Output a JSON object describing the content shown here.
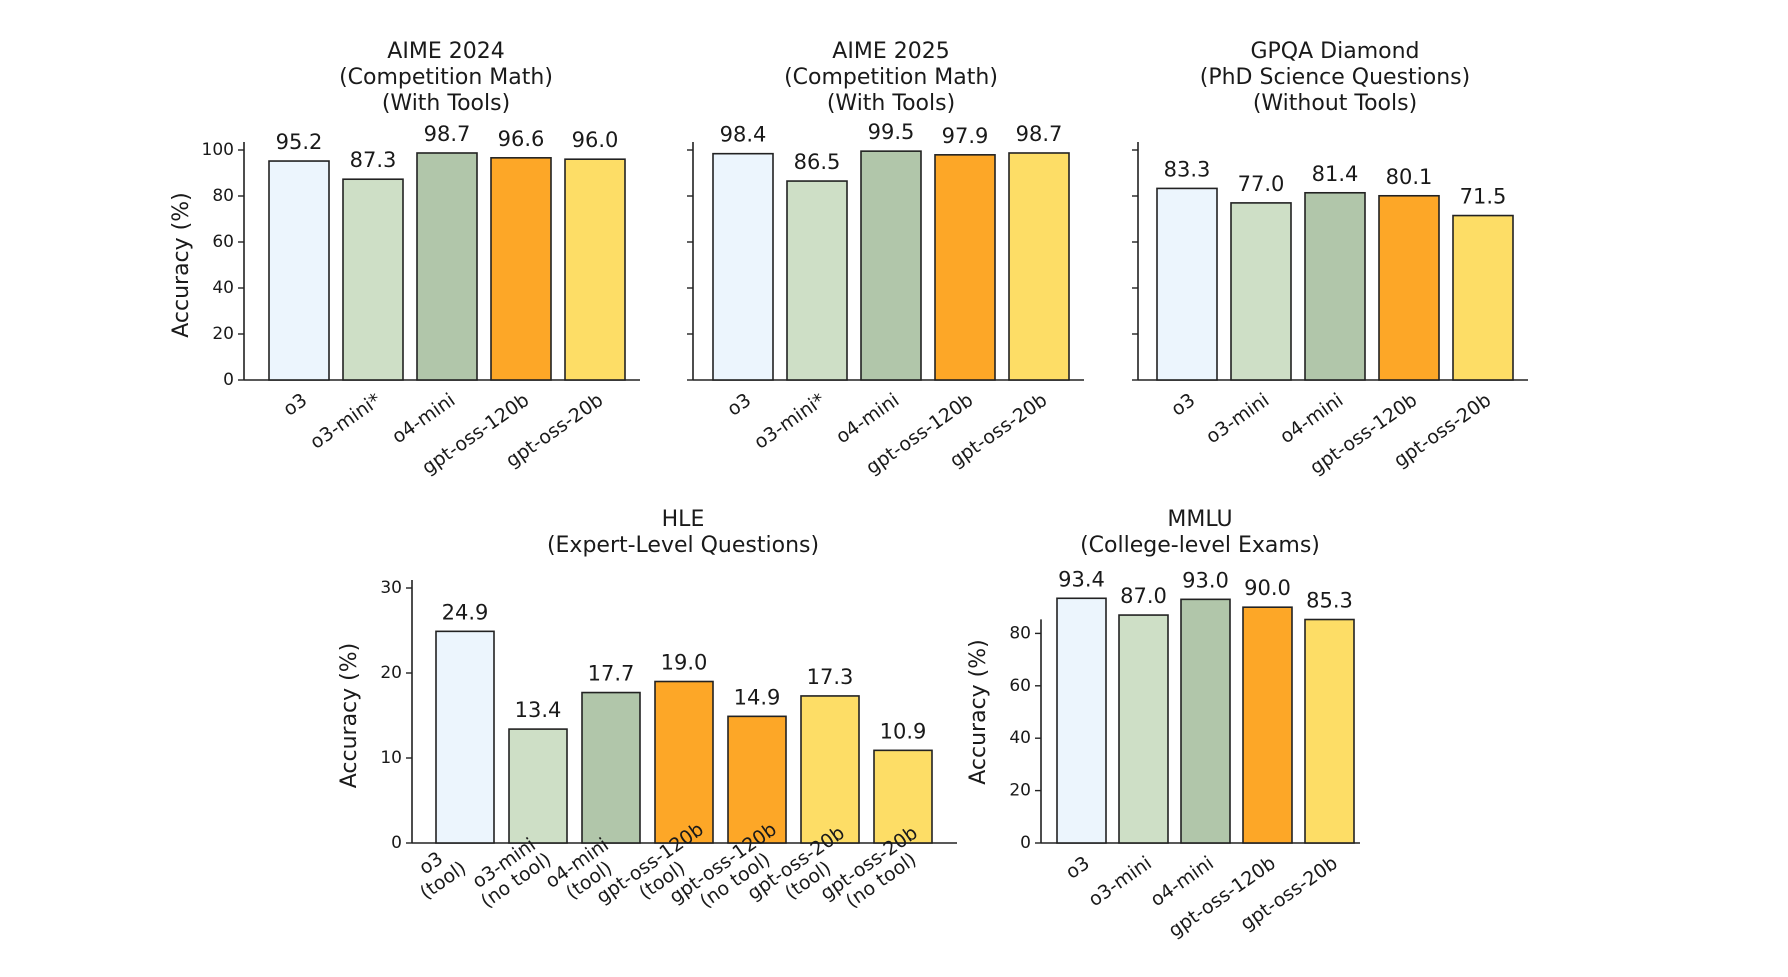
{
  "colors": {
    "o3": "#ecf5fd",
    "o3-mini": "#cedfc6",
    "o4-mini": "#b1c6aa",
    "gpt-oss-120b": "#fda727",
    "gpt-oss-20b": "#fddd66",
    "edge": "#222222"
  },
  "chart_data": [
    {
      "type": "bar",
      "title": [
        "AIME 2024",
        "(Competition Math)",
        "(With Tools)"
      ],
      "ylabel": "Accuracy (%)",
      "ylim": [
        0,
        100
      ],
      "yticks": [
        0,
        20,
        40,
        60,
        80,
        100
      ],
      "show_ytick_labels": true,
      "categories": [
        [
          "o3"
        ],
        [
          "o3-mini*"
        ],
        [
          "o4-mini"
        ],
        [
          "gpt-oss-120b"
        ],
        [
          "gpt-oss-20b"
        ]
      ],
      "color_keys": [
        "o3",
        "o3-mini",
        "o4-mini",
        "gpt-oss-120b",
        "gpt-oss-20b"
      ],
      "values": [
        95.2,
        87.3,
        98.7,
        96.6,
        96.0
      ],
      "value_labels": [
        "95.2",
        "87.3",
        "98.7",
        "96.6",
        "96.0"
      ]
    },
    {
      "type": "bar",
      "title": [
        "AIME 2025",
        "(Competition Math)",
        "(With Tools)"
      ],
      "ylabel": "",
      "ylim": [
        0,
        100
      ],
      "yticks": [
        0,
        20,
        40,
        60,
        80,
        100
      ],
      "show_ytick_labels": false,
      "categories": [
        [
          "o3"
        ],
        [
          "o3-mini*"
        ],
        [
          "o4-mini"
        ],
        [
          "gpt-oss-120b"
        ],
        [
          "gpt-oss-20b"
        ]
      ],
      "color_keys": [
        "o3",
        "o3-mini",
        "o4-mini",
        "gpt-oss-120b",
        "gpt-oss-20b"
      ],
      "values": [
        98.4,
        86.5,
        99.5,
        97.9,
        98.7
      ],
      "value_labels": [
        "98.4",
        "86.5",
        "99.5",
        "97.9",
        "98.7"
      ]
    },
    {
      "type": "bar",
      "title": [
        "GPQA Diamond",
        "(PhD Science Questions)",
        "(Without Tools)"
      ],
      "ylabel": "",
      "ylim": [
        0,
        100
      ],
      "yticks": [
        0,
        20,
        40,
        60,
        80,
        100
      ],
      "show_ytick_labels": false,
      "categories": [
        [
          "o3"
        ],
        [
          "o3-mini"
        ],
        [
          "o4-mini"
        ],
        [
          "gpt-oss-120b"
        ],
        [
          "gpt-oss-20b"
        ]
      ],
      "color_keys": [
        "o3",
        "o3-mini",
        "o4-mini",
        "gpt-oss-120b",
        "gpt-oss-20b"
      ],
      "values": [
        83.3,
        77.0,
        81.4,
        80.1,
        71.5
      ],
      "value_labels": [
        "83.3",
        "77.0",
        "81.4",
        "80.1",
        "71.5"
      ]
    },
    {
      "type": "bar",
      "title": [
        "HLE",
        "(Expert-Level Questions)"
      ],
      "ylabel": "Accuracy (%)",
      "ylim": [
        0,
        30
      ],
      "yticks": [
        0,
        10,
        20,
        30
      ],
      "show_ytick_labels": true,
      "categories": [
        [
          "o3",
          "(tool)"
        ],
        [
          "o3-mini",
          "(no tool)"
        ],
        [
          "o4-mini",
          "(tool)"
        ],
        [
          "gpt-oss-120b",
          "(tool)"
        ],
        [
          "gpt-oss-120b",
          "(no tool)"
        ],
        [
          "gpt-oss-20b",
          "(tool)"
        ],
        [
          "gpt-oss-20b",
          "(no tool)"
        ]
      ],
      "color_keys": [
        "o3",
        "o3-mini",
        "o4-mini",
        "gpt-oss-120b",
        "gpt-oss-120b",
        "gpt-oss-20b",
        "gpt-oss-20b"
      ],
      "values": [
        24.9,
        13.4,
        17.7,
        19.0,
        14.9,
        17.3,
        10.9
      ],
      "value_labels": [
        "24.9",
        "13.4",
        "17.7",
        "19.0",
        "14.9",
        "17.3",
        "10.9"
      ]
    },
    {
      "type": "bar",
      "title": [
        "MMLU",
        "(College-level Exams)"
      ],
      "ylabel": "Accuracy (%)",
      "ylim": [
        0,
        100
      ],
      "yticks": [
        0,
        20,
        40,
        60,
        80
      ],
      "show_ytick_labels": true,
      "categories": [
        [
          "o3"
        ],
        [
          "o3-mini"
        ],
        [
          "o4-mini"
        ],
        [
          "gpt-oss-120b"
        ],
        [
          "gpt-oss-20b"
        ]
      ],
      "color_keys": [
        "o3",
        "o3-mini",
        "o4-mini",
        "gpt-oss-120b",
        "gpt-oss-20b"
      ],
      "values": [
        93.4,
        87.0,
        93.0,
        90.0,
        85.3
      ],
      "value_labels": [
        "93.4",
        "87.0",
        "93.0",
        "90.0",
        "85.3"
      ]
    }
  ]
}
